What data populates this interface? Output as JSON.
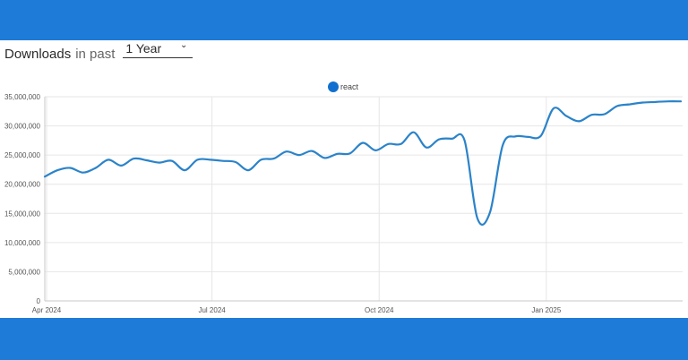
{
  "header": {
    "title_strong": "Downloads",
    "title_light": "in past",
    "period_selected": "1 Year"
  },
  "colors": {
    "band": "#1e7bd8",
    "series": "#2b83c9",
    "legend_dot": "#1170cf",
    "grid": "#e6e6e6"
  },
  "chart_data": {
    "type": "line",
    "legend": "top-center",
    "grid": true,
    "ylim": [
      0,
      35000000
    ],
    "y_ticks": [
      0,
      5000000,
      10000000,
      15000000,
      20000000,
      25000000,
      30000000,
      35000000
    ],
    "y_tick_labels": [
      "0",
      "5,000,000",
      "10,000,000",
      "15,000,000",
      "20,000,000",
      "25,000,000",
      "30,000,000",
      "35,000,000"
    ],
    "xlim": [
      "2024-03-31",
      "2025-03-17"
    ],
    "x_ticks": [
      "2024-04-01",
      "2024-07-01",
      "2024-10-01",
      "2025-01-01"
    ],
    "x_tick_labels": [
      "Apr 2024",
      "Jul 2024",
      "Oct 2024",
      "Jan 2025"
    ],
    "series": [
      {
        "name": "react",
        "x": [
          "2024-03-31",
          "2024-04-07",
          "2024-04-14",
          "2024-04-21",
          "2024-04-28",
          "2024-05-05",
          "2024-05-12",
          "2024-05-19",
          "2024-05-26",
          "2024-06-02",
          "2024-06-09",
          "2024-06-16",
          "2024-06-23",
          "2024-06-30",
          "2024-07-07",
          "2024-07-14",
          "2024-07-21",
          "2024-07-28",
          "2024-08-04",
          "2024-08-11",
          "2024-08-18",
          "2024-08-25",
          "2024-09-01",
          "2024-09-08",
          "2024-09-15",
          "2024-09-22",
          "2024-09-29",
          "2024-10-06",
          "2024-10-13",
          "2024-10-20",
          "2024-10-27",
          "2024-11-03",
          "2024-11-10",
          "2024-11-17",
          "2024-11-24",
          "2024-12-01",
          "2024-12-08",
          "2024-12-15",
          "2024-12-22",
          "2024-12-29",
          "2025-01-05",
          "2025-01-12",
          "2025-01-19",
          "2025-01-26",
          "2025-02-02",
          "2025-02-09",
          "2025-02-16",
          "2025-02-23",
          "2025-03-02",
          "2025-03-09",
          "2025-03-16"
        ],
        "values": [
          21300000,
          22400000,
          22800000,
          22000000,
          22800000,
          24200000,
          23200000,
          24400000,
          24100000,
          23700000,
          24000000,
          22400000,
          24200000,
          24200000,
          24000000,
          23800000,
          22400000,
          24200000,
          24400000,
          25600000,
          25000000,
          25700000,
          24500000,
          25200000,
          25300000,
          27100000,
          25800000,
          26900000,
          26900000,
          28900000,
          26300000,
          27700000,
          27800000,
          27500000,
          14200000,
          15200000,
          26700000,
          28200000,
          28100000,
          28300000,
          33000000,
          31700000,
          30800000,
          31900000,
          32000000,
          33400000,
          33700000,
          34000000,
          34100000,
          34200000,
          34200000
        ]
      }
    ]
  }
}
